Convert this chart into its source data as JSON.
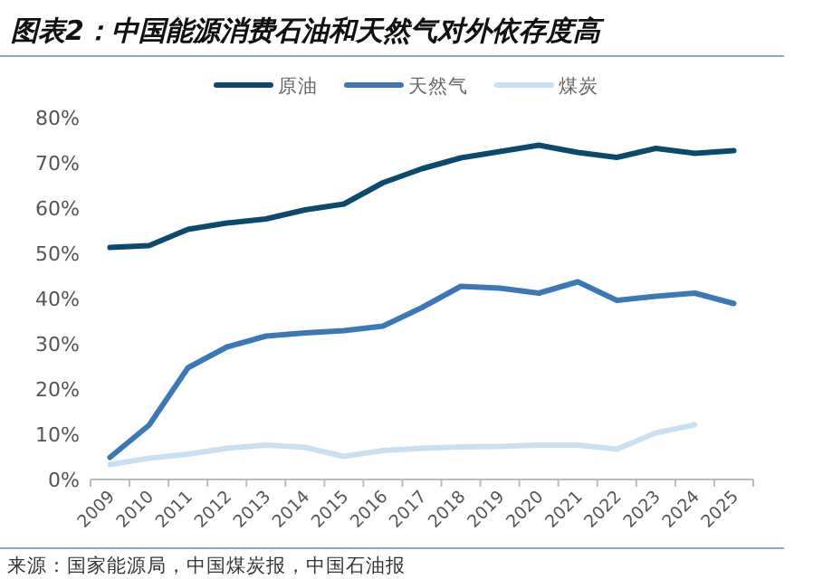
{
  "chart_data": {
    "type": "line",
    "title": "图表2：中国能源消费石油和天然气对外依存度高",
    "categories": [
      "2009",
      "2010",
      "2011",
      "2012",
      "2013",
      "2014",
      "2015",
      "2016",
      "2017",
      "2018",
      "2019",
      "2020",
      "2021",
      "2022",
      "2023",
      "2024",
      "2025"
    ],
    "series": [
      {
        "name": "原油",
        "color": "#0b4a6f",
        "values": [
          51.3,
          51.7,
          55.3,
          56.7,
          57.6,
          59.6,
          60.9,
          65.6,
          68.7,
          71.1,
          72.5,
          73.9,
          72.3,
          71.2,
          73.2,
          72.1,
          72.7
        ]
      },
      {
        "name": "天然气",
        "color": "#3c78b8",
        "values": [
          4.9,
          12,
          24.7,
          29.3,
          31.7,
          32.4,
          32.9,
          33.9,
          38,
          42.7,
          42.3,
          41.2,
          43.7,
          39.6,
          40.5,
          41.2,
          38.9
        ]
      },
      {
        "name": "煤炭",
        "color": "#c9dff2",
        "values": [
          3.3,
          4.7,
          5.6,
          6.9,
          7.6,
          7.1,
          5.1,
          6.4,
          6.9,
          7.2,
          7.3,
          7.6,
          7.6,
          6.7,
          10.3,
          12.1,
          null
        ]
      }
    ],
    "ylim": [
      0,
      80
    ],
    "yticks": [
      {
        "value": 0,
        "label": "0%"
      },
      {
        "value": 10,
        "label": "10%"
      },
      {
        "value": 20,
        "label": "20%"
      },
      {
        "value": 30,
        "label": "30%"
      },
      {
        "value": 40,
        "label": "40%"
      },
      {
        "value": 50,
        "label": "50%"
      },
      {
        "value": 60,
        "label": "60%"
      },
      {
        "value": 70,
        "label": "70%"
      },
      {
        "value": 80,
        "label": "80%"
      }
    ],
    "legend": "top",
    "grid": false,
    "marker": "none",
    "line_style": "solid",
    "annotations": [
      "来源：国家能源局，中国煤炭报，中国石油报"
    ]
  }
}
